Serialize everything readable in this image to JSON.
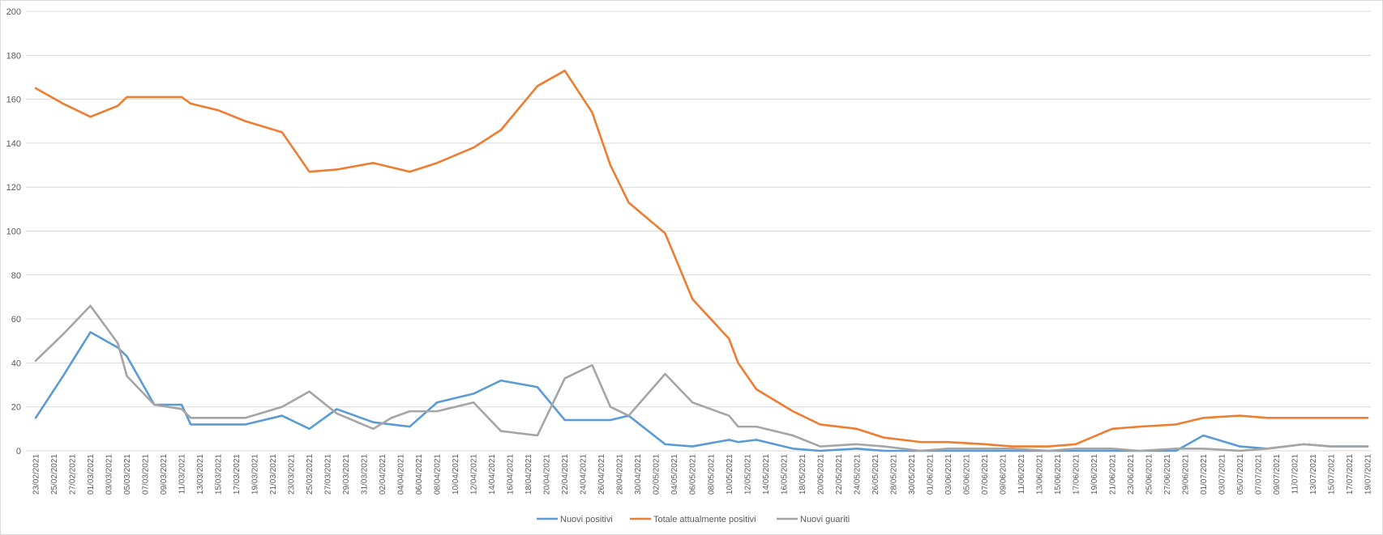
{
  "chart_data": {
    "type": "line",
    "title": "",
    "xlabel": "",
    "ylabel": "",
    "ylim": [
      0,
      200
    ],
    "yticks": [
      0,
      20,
      40,
      60,
      80,
      100,
      120,
      140,
      160,
      180,
      200
    ],
    "grid": "horizontal",
    "legend_position": "bottom",
    "x_tick_labels": [
      "23/02/2021",
      "25/02/2021",
      "27/02/2021",
      "01/03/2021",
      "03/03/2021",
      "05/03/2021",
      "07/03/2021",
      "09/03/2021",
      "11/03/2021",
      "13/03/2021",
      "15/03/2021",
      "17/03/2021",
      "19/03/2021",
      "21/03/2021",
      "23/03/2021",
      "25/03/2021",
      "27/03/2021",
      "29/03/2021",
      "31/03/2021",
      "02/04/2021",
      "04/04/2021",
      "06/04/2021",
      "08/04/2021",
      "10/04/2021",
      "12/04/2021",
      "14/04/2021",
      "16/04/2021",
      "18/04/2021",
      "20/04/2021",
      "22/04/2021",
      "24/04/2021",
      "26/04/2021",
      "28/04/2021",
      "30/04/2021",
      "02/05/2021",
      "04/05/2021",
      "06/05/2021",
      "08/05/2021",
      "10/05/2021",
      "12/05/2021",
      "14/05/2021",
      "16/05/2021",
      "18/05/2021",
      "20/05/2021",
      "22/05/2021",
      "24/05/2021",
      "26/05/2021",
      "28/05/2021",
      "30/05/2021",
      "01/06/2021",
      "03/06/2021",
      "05/06/2021",
      "07/06/2021",
      "09/06/2021",
      "11/06/2021",
      "13/06/2021",
      "15/06/2021",
      "17/06/2021",
      "19/06/2021",
      "21/06/2021",
      "23/06/2021",
      "25/06/2021",
      "27/06/2021",
      "29/06/2021",
      "01/07/2021",
      "03/07/2021",
      "05/07/2021",
      "07/07/2021",
      "09/07/2021",
      "11/07/2021",
      "13/07/2021",
      "15/07/2021",
      "17/07/2021",
      "19/07/2021"
    ],
    "x": [
      "23/02/2021",
      "26/02/2021",
      "01/03/2021",
      "04/03/2021",
      "05/03/2021",
      "08/03/2021",
      "11/03/2021",
      "12/03/2021",
      "15/03/2021",
      "18/03/2021",
      "22/03/2021",
      "25/03/2021",
      "28/03/2021",
      "01/04/2021",
      "03/04/2021",
      "05/04/2021",
      "08/04/2021",
      "12/04/2021",
      "15/04/2021",
      "19/04/2021",
      "22/04/2021",
      "25/04/2021",
      "27/04/2021",
      "29/04/2021",
      "03/05/2021",
      "06/05/2021",
      "10/05/2021",
      "11/05/2021",
      "13/05/2021",
      "17/05/2021",
      "20/05/2021",
      "24/05/2021",
      "27/05/2021",
      "31/05/2021",
      "03/06/2021",
      "07/06/2021",
      "10/06/2021",
      "14/06/2021",
      "17/06/2021",
      "21/06/2021",
      "24/06/2021",
      "28/06/2021",
      "01/07/2021",
      "05/07/2021",
      "08/07/2021",
      "12/07/2021",
      "15/07/2021",
      "19/07/2021"
    ],
    "series": [
      {
        "name": "Nuovi positivi",
        "color": "#5B9BD5",
        "values": [
          15,
          34,
          54,
          47,
          43,
          21,
          21,
          12,
          12,
          12,
          16,
          10,
          19,
          13,
          12,
          11,
          22,
          26,
          32,
          29,
          14,
          14,
          14,
          16,
          3,
          2,
          5,
          4,
          5,
          1,
          0,
          1,
          0,
          0,
          0,
          0,
          0,
          0,
          0,
          0,
          0,
          0,
          7,
          2,
          1,
          3,
          2,
          2
        ]
      },
      {
        "name": "Totale attualmente positivi",
        "color": "#ED7D31",
        "values": [
          165,
          158,
          152,
          157,
          161,
          161,
          161,
          158,
          155,
          150,
          145,
          127,
          128,
          131,
          129,
          127,
          131,
          138,
          146,
          166,
          173,
          154,
          130,
          113,
          99,
          69,
          51,
          40,
          28,
          18,
          12,
          10,
          6,
          4,
          4,
          3,
          2,
          2,
          3,
          10,
          11,
          12,
          15,
          16,
          15,
          15,
          15,
          15
        ]
      },
      {
        "name": "Nuovi guariti",
        "color": "#A5A5A5",
        "values": [
          41,
          53,
          66,
          49,
          34,
          21,
          19,
          15,
          15,
          15,
          20,
          27,
          17,
          10,
          15,
          18,
          18,
          22,
          9,
          7,
          33,
          39,
          20,
          16,
          35,
          22,
          16,
          11,
          11,
          7,
          2,
          3,
          2,
          0,
          1,
          1,
          1,
          0,
          1,
          1,
          0,
          1,
          1,
          0,
          1,
          3,
          2,
          2
        ]
      }
    ]
  }
}
